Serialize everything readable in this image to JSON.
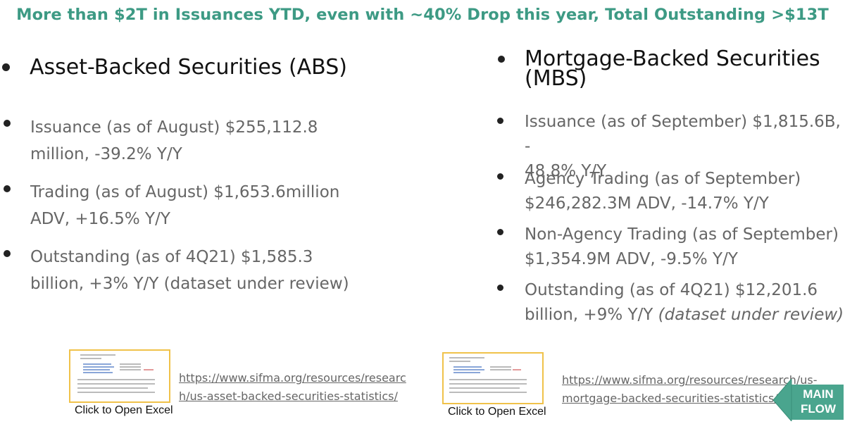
{
  "headline": "More than $2T in Issuances YTD, even with ~40% Drop this year, Total Outstanding >$13T",
  "abs": {
    "heading": "Asset-Backed Securities (ABS)",
    "items": [
      [
        "Issuance (as of August) $255,112.8",
        "million, -39.2% Y/Y"
      ],
      [
        "Trading (as of August) $1,653.6million",
        "ADV, +16.5% Y/Y"
      ],
      [
        "Outstanding (as of 4Q21) $1,585.3",
        "billion, +3% Y/Y (dataset under review)"
      ]
    ],
    "caption": "Click to Open Excel",
    "link": [
      "https://www.sifma.org/resources/researc",
      "h/us-asset-backed-securities-statistics/"
    ]
  },
  "mbs": {
    "heading": [
      "Mortgage-Backed Securities",
      "(MBS)"
    ],
    "items": [
      [
        "Issuance (as of September) $1,815.6B, -",
        "48.8% Y/Y"
      ],
      [
        "Agency Trading (as of September)",
        "$246,282.3M ADV, -14.7% Y/Y"
      ],
      [
        "Non-Agency Trading (as of September)",
        "$1,354.9M ADV, -9.5% Y/Y"
      ],
      [
        "Outstanding (as of 4Q21) $12,201.6",
        "billion, +9% Y/Y ",
        "(dataset under review)"
      ]
    ],
    "caption": "Click to Open Excel",
    "link": [
      "https://www.sifma.org/resources/research/us-",
      "mortgage-backed-securities-statistics/"
    ]
  },
  "main_flow": [
    "MAIN",
    "FLOW"
  ],
  "colors": {
    "headline": "#3d9a84",
    "body_text": "#666666",
    "heading_text": "#111111",
    "thumb_border": "#f0c24a",
    "arrow": "#4aa58e"
  },
  "icons": [
    "bullet-icon",
    "excel-thumbnail",
    "back-arrow-icon"
  ]
}
